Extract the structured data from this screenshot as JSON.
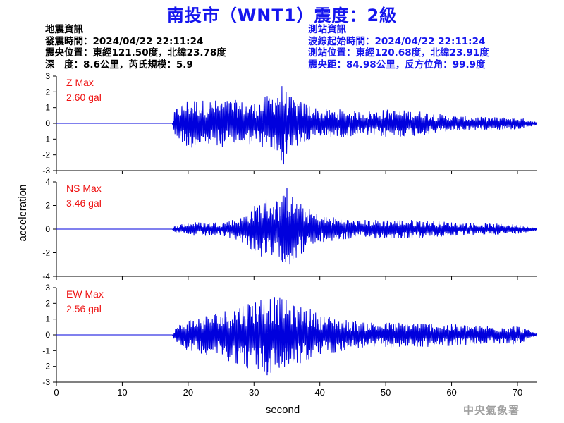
{
  "header": {
    "title": "南投市（WNT1）震度：2級"
  },
  "event_info": {
    "heading": "地震資訊",
    "origin_time": "發震時間：2024/04/22 22:11:24",
    "epicenter": "震央位置：東經121.50度，北緯23.78度",
    "depth_magnitude": "深　度：8.6公里，芮氏規模：5.9"
  },
  "station_info": {
    "heading": "測站資訊",
    "wave_start": "波線起始時間：2024/04/22 22:11:24",
    "location": "測站位置：東經120.68度，北緯23.91度",
    "distance": "震央距：84.98公里，反方位角：99.9度"
  },
  "footer": {
    "agency": "中央氣象署"
  },
  "colors": {
    "trace": "#0000dd",
    "max_label": "#ee1111",
    "title": "#1515ee",
    "axis": "#000000"
  },
  "chart_data": {
    "type": "line",
    "xlabel": "second",
    "ylabel": "acceleration",
    "xlim": [
      0,
      73
    ],
    "x_ticks": [
      0,
      10,
      20,
      30,
      40,
      50,
      60,
      70
    ],
    "onset_s": 17.6,
    "grid": false,
    "panels": [
      {
        "component": "Z",
        "max_label": "Z Max",
        "max_value": "2.60 gal",
        "ylim": [
          -3,
          3
        ],
        "y_ticks": [
          3,
          2,
          1,
          0,
          -1,
          -2,
          -3
        ],
        "series": {
          "x": [
            0,
            17.6,
            18,
            20,
            22,
            25,
            27,
            30,
            33,
            34.5,
            35,
            36,
            38,
            40,
            43,
            45,
            48,
            50,
            55,
            60,
            65,
            70,
            73
          ],
          "y": [
            0,
            0,
            0.9,
            1.6,
            -1.5,
            1.5,
            -1.5,
            1.3,
            2.0,
            -2.6,
            1.9,
            1.6,
            -1.3,
            0.9,
            0.9,
            -0.8,
            0.8,
            0.9,
            0.8,
            0.5,
            0.4,
            0.4,
            0.1
          ]
        }
      },
      {
        "component": "NS",
        "max_label": "NS Max",
        "max_value": "3.46 gal",
        "ylim": [
          -4,
          4
        ],
        "y_ticks": [
          4,
          2,
          0,
          -2,
          -4
        ],
        "series": {
          "x": [
            0,
            17.6,
            18,
            20,
            25,
            28,
            30,
            32,
            34,
            35,
            36,
            37,
            40,
            45,
            50,
            55,
            60,
            65,
            70,
            73
          ],
          "y": [
            0,
            0,
            0.3,
            0.6,
            0.6,
            1.0,
            2.0,
            -2.8,
            2.5,
            3.46,
            -2.7,
            2.2,
            1.2,
            0.8,
            0.8,
            0.8,
            0.6,
            0.5,
            0.4,
            0.1
          ]
        }
      },
      {
        "component": "EW",
        "max_label": "EW Max",
        "max_value": "2.56 gal",
        "ylim": [
          -3,
          3
        ],
        "y_ticks": [
          3,
          2,
          1,
          0,
          -1,
          -2,
          -3
        ],
        "series": {
          "x": [
            0,
            17.6,
            18,
            20,
            25,
            30,
            32,
            34,
            35,
            36,
            38,
            40,
            45,
            50,
            55,
            60,
            65,
            70,
            73
          ],
          "y": [
            0,
            0,
            0.5,
            1.0,
            1.5,
            2.3,
            -2.56,
            2.4,
            2.2,
            -1.9,
            1.8,
            1.3,
            0.9,
            0.8,
            0.8,
            0.7,
            0.6,
            0.6,
            0.1
          ]
        }
      }
    ]
  }
}
